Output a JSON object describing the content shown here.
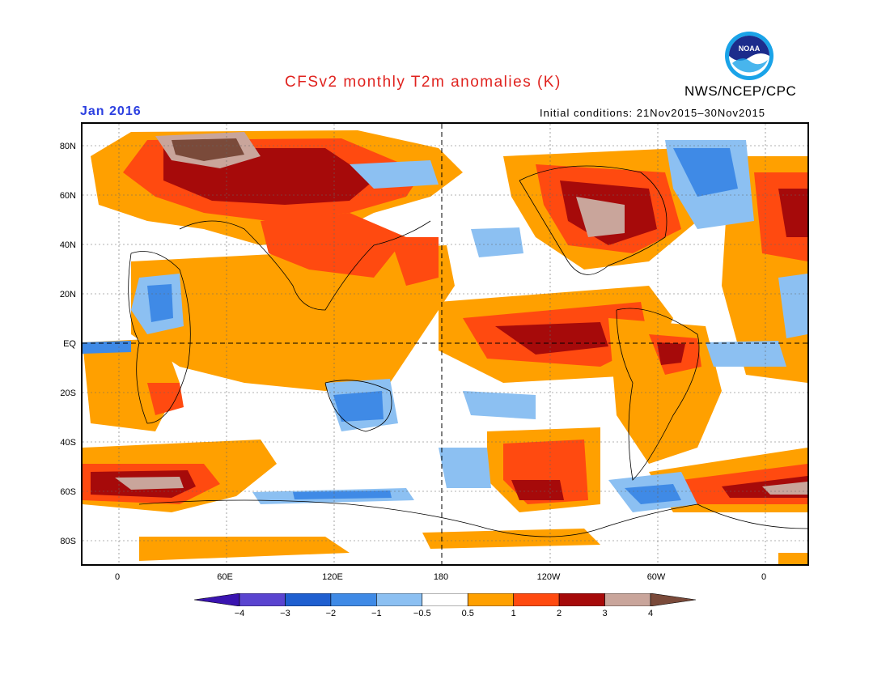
{
  "header": {
    "title": "CFSv2 monthly T2m anomalies (K)",
    "month": "Jan 2016",
    "initial_conditions": "Initial conditions: 21Nov2015–30Nov2015",
    "agency": "NWS/NCEP/CPC",
    "logo_text": "NOAA"
  },
  "axes": {
    "lat_labels": [
      "80N",
      "60N",
      "40N",
      "20N",
      "EQ",
      "20S",
      "40S",
      "60S",
      "80S"
    ],
    "lon_labels": [
      "0",
      "60E",
      "120E",
      "180",
      "120W",
      "60W",
      "0"
    ]
  },
  "colorbar": {
    "labels": [
      "−4",
      "−3",
      "−2",
      "−1",
      "−0.5",
      "0.5",
      "1",
      "2",
      "3",
      "4"
    ],
    "colors": [
      "#3a14b0",
      "#5a44d0",
      "#1f5fd0",
      "#3f8ae6",
      "#8cc0f2",
      "#ffffff",
      "#ffa000",
      "#ff4a10",
      "#a60a0a",
      "#c9a59b",
      "#7a4a3a"
    ]
  }
}
